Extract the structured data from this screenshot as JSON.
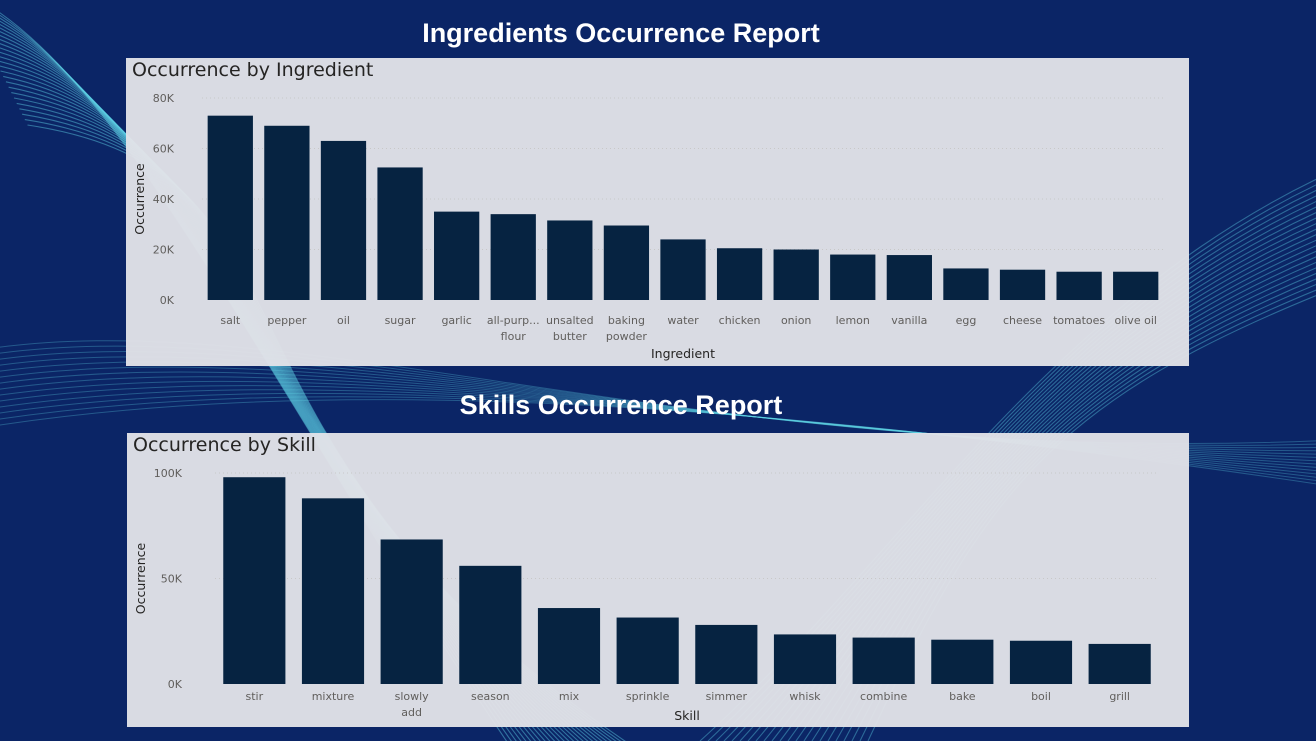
{
  "page": {
    "title_ingredients": "Ingredients Occurrence Report",
    "title_skills": "Skills Occurrence Report"
  },
  "colors": {
    "background": "#0b2566",
    "panel": "#e2e3e8",
    "bar": "#062341",
    "wave": "#5fd3e6"
  },
  "chart_data": [
    {
      "type": "bar",
      "title": "Occurrence by Ingredient",
      "xlabel": "Ingredient",
      "ylabel": "Occurrence",
      "ylim": [
        0,
        80000
      ],
      "yticks": [
        0,
        20000,
        40000,
        60000,
        80000
      ],
      "ytick_labels": [
        "0K",
        "20K",
        "40K",
        "60K",
        "80K"
      ],
      "grid": true,
      "categories": [
        "salt",
        "pepper",
        "oil",
        "sugar",
        "garlic",
        "all-purp... flour",
        "unsalted butter",
        "baking powder",
        "water",
        "chicken",
        "onion",
        "lemon",
        "vanilla",
        "egg",
        "cheese",
        "tomatoes",
        "olive oil"
      ],
      "values": [
        73000,
        69000,
        63000,
        52500,
        35000,
        34000,
        31500,
        29500,
        24000,
        20500,
        20000,
        18000,
        17800,
        12500,
        12000,
        11200,
        11200
      ]
    },
    {
      "type": "bar",
      "title": "Occurrence by Skill",
      "xlabel": "Skill",
      "ylabel": "Occurrence",
      "ylim": [
        0,
        100000
      ],
      "yticks": [
        0,
        50000,
        100000
      ],
      "ytick_labels": [
        "0K",
        "50K",
        "100K"
      ],
      "grid": true,
      "categories": [
        "stir",
        "mixture",
        "slowly add",
        "season",
        "mix",
        "sprinkle",
        "simmer",
        "whisk",
        "combine",
        "bake",
        "boil",
        "grill"
      ],
      "values": [
        98000,
        88000,
        68500,
        56000,
        36000,
        31500,
        28000,
        23500,
        22000,
        21000,
        20500,
        19000
      ]
    }
  ]
}
